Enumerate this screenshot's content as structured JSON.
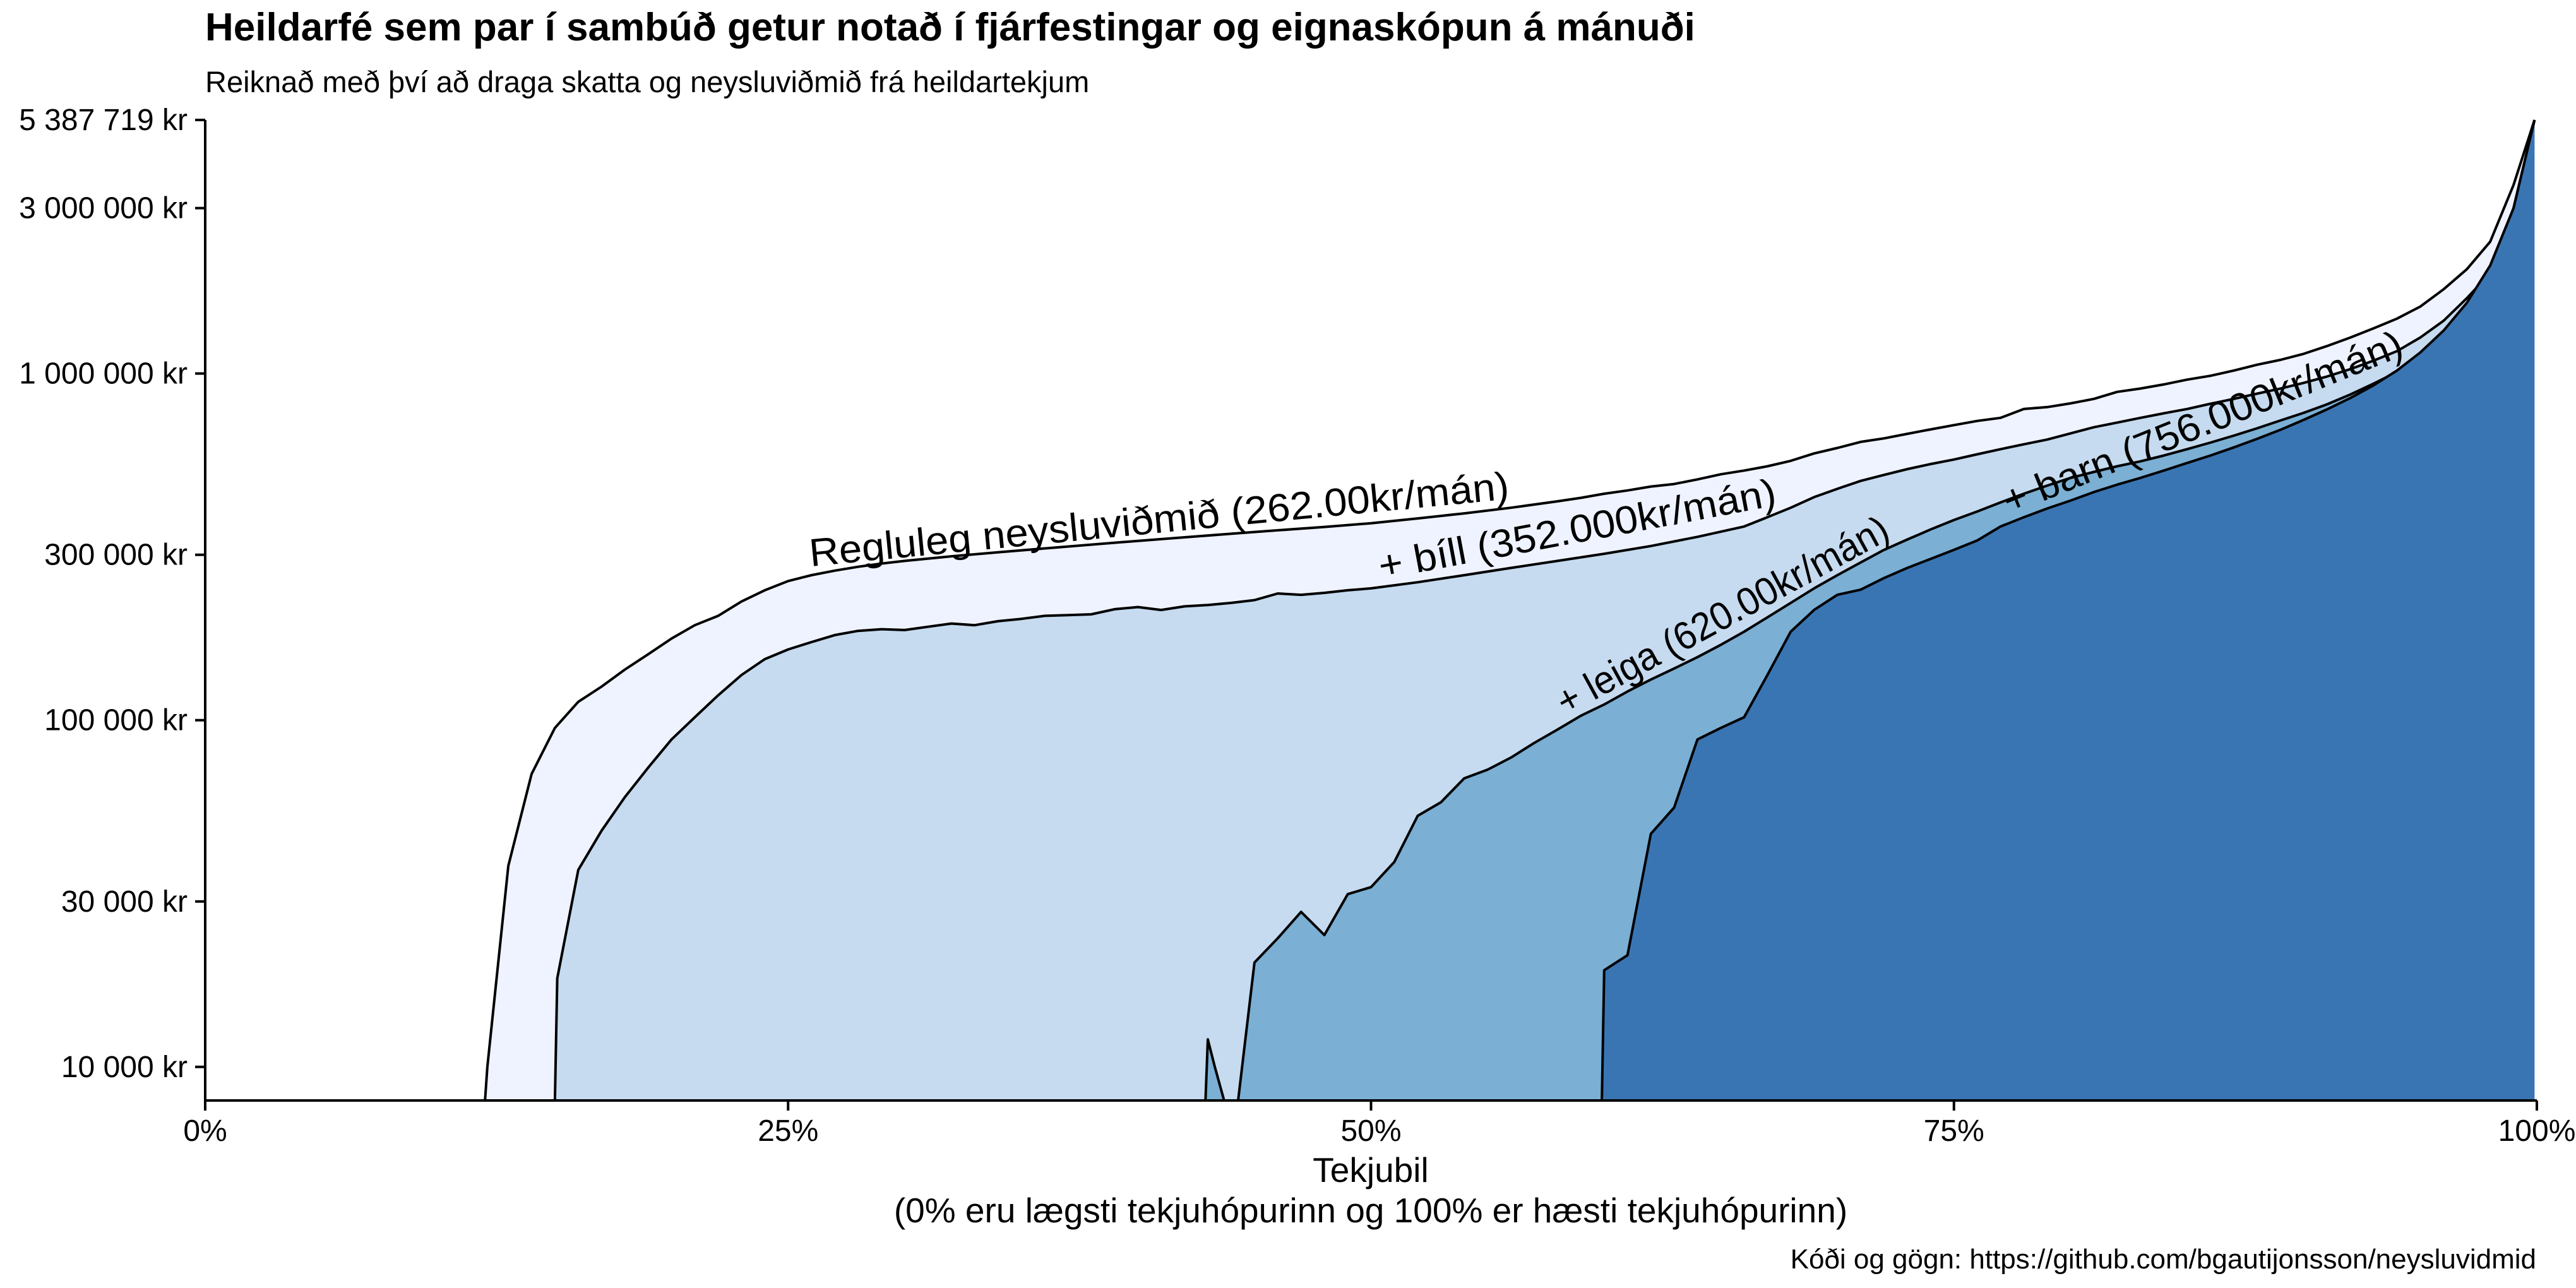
{
  "chart_data": {
    "type": "area",
    "title": "Heildarfé sem par í sambúð getur notað í fjárfestingar og eignaskópun á mánuði",
    "subtitle": "Reiknað með því að draga skatta og neysluviðmið frá heildartekjum",
    "caption": "Kóði og gögn: https://github.com/bgautijonsson/neysluvidmid",
    "xlabel": "Tekjubil",
    "xlabel_note": "(0% eru lægsti tekjuhópurinn og 100% er hæsti tekjuhópurinn)",
    "y_scale": "log",
    "xlim": [
      0,
      100
    ],
    "ylim": [
      8000,
      5387719
    ],
    "x_ticks": [
      0,
      25,
      50,
      75,
      100
    ],
    "x_tick_labels": [
      "0%",
      "25%",
      "50%",
      "75%",
      "100%"
    ],
    "y_ticks": [
      10000,
      30000,
      100000,
      300000,
      1000000,
      3000000,
      5387719
    ],
    "y_tick_labels": [
      "10 000 kr",
      "30 000 kr",
      "100 000 kr",
      "300 000 kr",
      "1 000 000 kr",
      "3 000 000 kr",
      "5 387 719 kr"
    ],
    "colors": [
      "#eff3ff",
      "#c6dbef",
      "#7bafd4",
      "#3a75b3"
    ],
    "series": [
      {
        "label": "Regluleg neysluviðmið (262.00kr/mán)",
        "points": [
          [
            12,
            8000
          ],
          [
            12.1,
            10000
          ],
          [
            13,
            38000
          ],
          [
            14,
            70000
          ],
          [
            15,
            95000
          ],
          [
            16,
            113000
          ],
          [
            17,
            125000
          ],
          [
            18,
            140000
          ],
          [
            19,
            155000
          ],
          [
            20,
            172000
          ],
          [
            21,
            188000
          ],
          [
            22,
            200000
          ],
          [
            23,
            220000
          ],
          [
            24,
            237000
          ],
          [
            25,
            252000
          ],
          [
            26,
            262000
          ],
          [
            27,
            270000
          ],
          [
            28,
            277000
          ],
          [
            29,
            283000
          ],
          [
            30,
            288000
          ],
          [
            32,
            297000
          ],
          [
            34,
            305000
          ],
          [
            36,
            313000
          ],
          [
            38,
            321000
          ],
          [
            40,
            329000
          ],
          [
            42,
            337000
          ],
          [
            44,
            345000
          ],
          [
            46,
            353000
          ],
          [
            48,
            361000
          ],
          [
            50,
            370000
          ],
          [
            52,
            382000
          ],
          [
            54,
            395000
          ],
          [
            56,
            410000
          ],
          [
            58,
            428000
          ],
          [
            59,
            438000
          ],
          [
            60,
            450000
          ],
          [
            61,
            460000
          ],
          [
            62,
            472000
          ],
          [
            63,
            480000
          ],
          [
            64,
            495000
          ],
          [
            65,
            512000
          ],
          [
            66,
            525000
          ],
          [
            67,
            540000
          ],
          [
            68,
            560000
          ],
          [
            69,
            588000
          ],
          [
            70,
            610000
          ],
          [
            71,
            635000
          ],
          [
            72,
            650000
          ],
          [
            73,
            670000
          ],
          [
            74,
            690000
          ],
          [
            75,
            710000
          ],
          [
            76,
            730000
          ],
          [
            77,
            745000
          ],
          [
            78,
            790000
          ],
          [
            79,
            800000
          ],
          [
            80,
            820000
          ],
          [
            81,
            845000
          ],
          [
            82,
            885000
          ],
          [
            83,
            905000
          ],
          [
            84,
            930000
          ],
          [
            85,
            960000
          ],
          [
            86,
            985000
          ],
          [
            87,
            1020000
          ],
          [
            88,
            1060000
          ],
          [
            89,
            1095000
          ],
          [
            90,
            1140000
          ],
          [
            91,
            1200000
          ],
          [
            92,
            1270000
          ],
          [
            93,
            1350000
          ],
          [
            94,
            1440000
          ],
          [
            95,
            1560000
          ],
          [
            96,
            1750000
          ],
          [
            97,
            2000000
          ],
          [
            98,
            2400000
          ],
          [
            99,
            3500000
          ],
          [
            99.9,
            5387719
          ]
        ]
      },
      {
        "label": "+ bíll (352.000kr/mán)",
        "points": [
          [
            15,
            8000
          ],
          [
            15.1,
            18000
          ],
          [
            16,
            37000
          ],
          [
            17,
            48000
          ],
          [
            18,
            60000
          ],
          [
            19,
            73000
          ],
          [
            20,
            88000
          ],
          [
            21,
            102000
          ],
          [
            22,
            118000
          ],
          [
            23,
            135000
          ],
          [
            24,
            150000
          ],
          [
            25,
            160000
          ],
          [
            26,
            168000
          ],
          [
            27,
            176000
          ],
          [
            28,
            181000
          ],
          [
            29,
            183000
          ],
          [
            30,
            182000
          ],
          [
            31,
            186000
          ],
          [
            32,
            190000
          ],
          [
            33,
            188000
          ],
          [
            34,
            193000
          ],
          [
            35,
            196000
          ],
          [
            36,
            200000
          ],
          [
            37,
            201000
          ],
          [
            38,
            202000
          ],
          [
            39,
            209000
          ],
          [
            40,
            212000
          ],
          [
            41,
            208000
          ],
          [
            42,
            213000
          ],
          [
            43,
            215000
          ],
          [
            44,
            218000
          ],
          [
            45,
            222000
          ],
          [
            46,
            232000
          ],
          [
            47,
            230000
          ],
          [
            48,
            233000
          ],
          [
            49,
            237000
          ],
          [
            50,
            240000
          ],
          [
            52,
            250000
          ],
          [
            54,
            262000
          ],
          [
            56,
            275000
          ],
          [
            58,
            288000
          ],
          [
            60,
            302000
          ],
          [
            62,
            318000
          ],
          [
            64,
            338000
          ],
          [
            66,
            362000
          ],
          [
            67,
            385000
          ],
          [
            68,
            410000
          ],
          [
            69,
            440000
          ],
          [
            70,
            465000
          ],
          [
            71,
            490000
          ],
          [
            72,
            510000
          ],
          [
            73,
            530000
          ],
          [
            74,
            548000
          ],
          [
            75,
            565000
          ],
          [
            76,
            585000
          ],
          [
            77,
            605000
          ],
          [
            78,
            625000
          ],
          [
            79,
            645000
          ],
          [
            80,
            672000
          ],
          [
            81,
            700000
          ],
          [
            82,
            722000
          ],
          [
            83,
            745000
          ],
          [
            84,
            768000
          ],
          [
            85,
            790000
          ],
          [
            86,
            818000
          ],
          [
            87,
            845000
          ],
          [
            88,
            875000
          ],
          [
            89,
            905000
          ],
          [
            90,
            940000
          ],
          [
            91,
            980000
          ],
          [
            92,
            1030000
          ],
          [
            93,
            1090000
          ],
          [
            94,
            1160000
          ],
          [
            95,
            1270000
          ],
          [
            96,
            1420000
          ],
          [
            97,
            1650000
          ],
          [
            98,
            1950000
          ],
          [
            99,
            3000000
          ],
          [
            99.9,
            5387719
          ]
        ]
      },
      {
        "label": "+ leiga (620.00kr/mán)",
        "points": [
          [
            42.9,
            8000
          ],
          [
            43,
            12000
          ],
          [
            43.3,
            10000
          ],
          [
            43.7,
            8000
          ],
          [
            44.3,
            8000
          ],
          [
            45,
            20000
          ],
          [
            46,
            23500
          ],
          [
            47,
            28000
          ],
          [
            48,
            24000
          ],
          [
            49,
            31500
          ],
          [
            50,
            33000
          ],
          [
            51,
            39000
          ],
          [
            52,
            53000
          ],
          [
            53,
            58000
          ],
          [
            54,
            68000
          ],
          [
            55,
            72000
          ],
          [
            56,
            78000
          ],
          [
            57,
            86000
          ],
          [
            58,
            94000
          ],
          [
            59,
            103000
          ],
          [
            60,
            111000
          ],
          [
            61,
            121000
          ],
          [
            62,
            131000
          ],
          [
            63,
            141000
          ],
          [
            64,
            152000
          ],
          [
            65,
            165000
          ],
          [
            66,
            180000
          ],
          [
            67,
            198000
          ],
          [
            68,
            218000
          ],
          [
            69,
            240000
          ],
          [
            70,
            262000
          ],
          [
            71,
            285000
          ],
          [
            72,
            310000
          ],
          [
            73,
            332000
          ],
          [
            74,
            355000
          ],
          [
            75,
            378000
          ],
          [
            76,
            400000
          ],
          [
            77,
            425000
          ],
          [
            78,
            450000
          ],
          [
            79,
            475000
          ],
          [
            80,
            500000
          ],
          [
            81,
            520000
          ],
          [
            82,
            540000
          ],
          [
            83,
            558000
          ],
          [
            84,
            580000
          ],
          [
            85,
            605000
          ],
          [
            86,
            632000
          ],
          [
            87,
            662000
          ],
          [
            88,
            695000
          ],
          [
            89,
            732000
          ],
          [
            90,
            770000
          ],
          [
            91,
            815000
          ],
          [
            92,
            870000
          ],
          [
            93,
            935000
          ],
          [
            94,
            1010000
          ],
          [
            95,
            1120000
          ],
          [
            96,
            1280000
          ],
          [
            97,
            1500000
          ],
          [
            98,
            1850000
          ],
          [
            99,
            2900000
          ],
          [
            99.9,
            5387719
          ]
        ]
      },
      {
        "label": "+ barn (756.000kr/mán)",
        "points": [
          [
            59.9,
            8000
          ],
          [
            60,
            19000
          ],
          [
            61,
            21000
          ],
          [
            62,
            47000
          ],
          [
            63,
            56000
          ],
          [
            64,
            88000
          ],
          [
            65,
            95000
          ],
          [
            66,
            102000
          ],
          [
            67,
            135000
          ],
          [
            68,
            180000
          ],
          [
            69,
            208000
          ],
          [
            70,
            230000
          ],
          [
            71,
            238000
          ],
          [
            72,
            257000
          ],
          [
            73,
            275000
          ],
          [
            74,
            292000
          ],
          [
            75,
            310000
          ],
          [
            76,
            330000
          ],
          [
            77,
            362000
          ],
          [
            78,
            385000
          ],
          [
            79,
            408000
          ],
          [
            80,
            430000
          ],
          [
            81,
            455000
          ],
          [
            82,
            478000
          ],
          [
            83,
            500000
          ],
          [
            84,
            525000
          ],
          [
            85,
            552000
          ],
          [
            86,
            580000
          ],
          [
            87,
            612000
          ],
          [
            88,
            648000
          ],
          [
            89,
            688000
          ],
          [
            90,
            735000
          ],
          [
            91,
            788000
          ],
          [
            92,
            850000
          ],
          [
            93,
            925000
          ],
          [
            94,
            1020000
          ],
          [
            95,
            1150000
          ],
          [
            96,
            1330000
          ],
          [
            97,
            1600000
          ],
          [
            98,
            2050000
          ],
          [
            99,
            3000000
          ],
          [
            99.9,
            5387719
          ]
        ]
      }
    ]
  }
}
